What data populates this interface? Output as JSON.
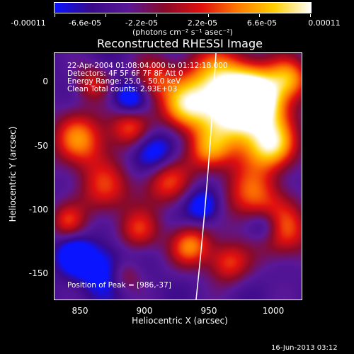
{
  "colorbar": {
    "tick_labels": [
      "-0.00011",
      "-6.6e-05",
      "-2.2e-05",
      "2.2e-05",
      "6.6e-05",
      "0.00011"
    ],
    "units": "(photons cm⁻² s⁻¹ asec⁻²)",
    "colormap": [
      "#0a14ff",
      "#3a0a8a",
      "#5a1898",
      "#8a0a2a",
      "#e01010",
      "#ff7a00",
      "#ffd000",
      "#ffffff"
    ]
  },
  "plot": {
    "title": "Reconstructed RHESSI Image",
    "xlabel": "Heliocentric X (arcsec)",
    "ylabel": "Heliocentric Y (arcsec)",
    "xlim": [
      828,
      1022
    ],
    "ylim": [
      -171,
      23
    ],
    "xticks": [
      "850",
      "900",
      "950",
      "1000"
    ],
    "xtick_values": [
      850,
      900,
      950,
      1000
    ],
    "yticks": [
      "0",
      "-50",
      "-100",
      "-150"
    ],
    "ytick_values": [
      0,
      -50,
      -100,
      -150
    ],
    "info_lines": [
      "22-Apr-2004 01:08:04.000 to 01:12:18.000",
      "Detectors: 4F 5F 6F 7F 8F  Att 0",
      "Energy Range: 25.0 - 50.0 keV",
      "Clean    Total counts: 2.93E+03"
    ],
    "peak_text": "Position of Peak = [986,-37]"
  },
  "footer": "16-Jun-2013 03:12"
}
